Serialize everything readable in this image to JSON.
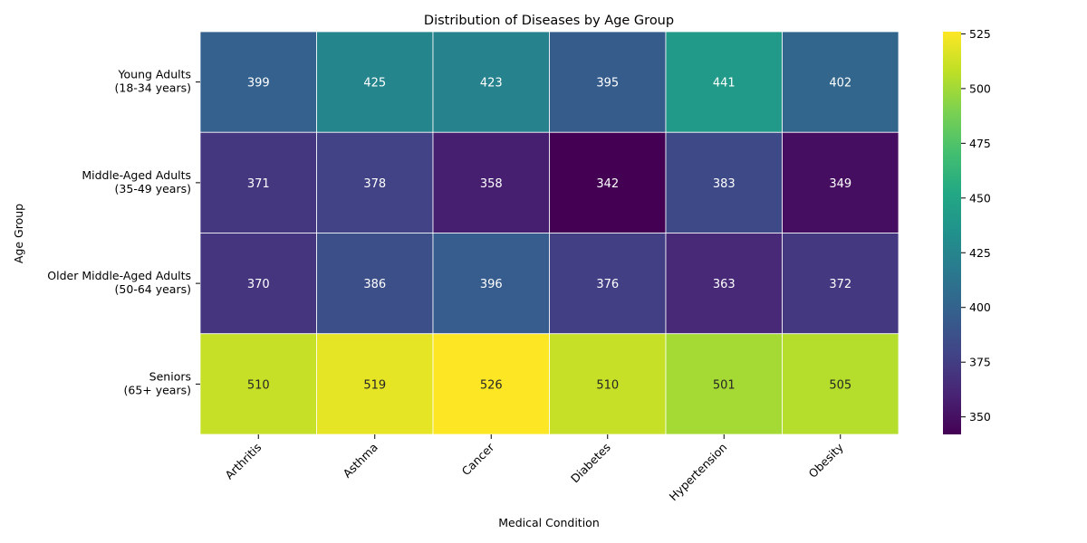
{
  "chart_data": {
    "type": "heatmap",
    "title": "Distribution of Diseases by Age Group",
    "xlabel": "Medical Condition",
    "ylabel": "Age Group",
    "x_categories": [
      "Arthritis",
      "Asthma",
      "Cancer",
      "Diabetes",
      "Hypertension",
      "Obesity"
    ],
    "y_categories": [
      [
        "Young Adults",
        "(18-34 years)"
      ],
      [
        "Middle-Aged Adults",
        "(35-49 years)"
      ],
      [
        "Older Middle-Aged Adults",
        "(50-64 years)"
      ],
      [
        "Seniors",
        "(65+ years)"
      ]
    ],
    "values": [
      [
        399,
        425,
        423,
        395,
        441,
        402
      ],
      [
        371,
        378,
        358,
        342,
        383,
        349
      ],
      [
        370,
        386,
        396,
        376,
        363,
        372
      ],
      [
        510,
        519,
        526,
        510,
        501,
        505
      ]
    ],
    "colormap": "viridis",
    "color_range": [
      342,
      526
    ],
    "colorbar_ticks": [
      350,
      375,
      400,
      425,
      450,
      475,
      500,
      525
    ],
    "annotations": true,
    "grid": false
  }
}
